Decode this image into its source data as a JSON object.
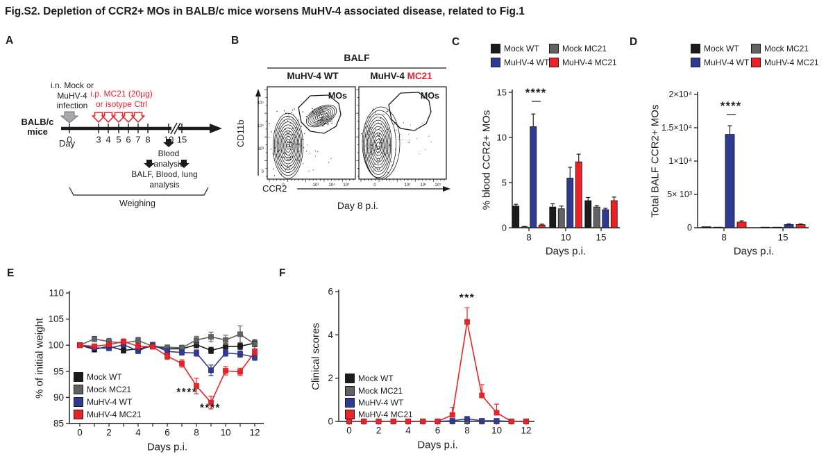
{
  "figure_title": "Fig.S2. Depletion of CCR2+ MOs in BALB/c mice worsens MuHV-4 associated disease, related to Fig.1",
  "panel_labels": {
    "a": "A",
    "b": "B",
    "c": "C",
    "d": "D",
    "e": "E",
    "f": "F"
  },
  "colors": {
    "black": "#1b1b1b",
    "gray": "#606266",
    "blue": "#2f3a93",
    "red": "#ec2227"
  },
  "groups": [
    {
      "name": "Mock WT",
      "color": "#1b1b1b"
    },
    {
      "name": "Mock MC21",
      "color": "#606266"
    },
    {
      "name": "MuHV-4 WT",
      "color": "#2f3a93"
    },
    {
      "name": "MuHV-4 MC21",
      "color": "#ec2227"
    }
  ],
  "panel_a": {
    "mouse_label": "BALB/c\nmice",
    "infection_label": "i.n. Mock or\nMuHV-4\ninfection",
    "treatment_label": "i.p. MC21 (20µg)\nor isotype Ctrl",
    "day_axis_label": "Day",
    "timeline_ticks": [
      "0",
      "3",
      "4",
      "5",
      "6",
      "7",
      "8",
      "10",
      "15"
    ],
    "blood_analysis_label": "Blood\nanalysis",
    "balf_analysis_label": "BALF, Blood, lung\nanalysis",
    "weighing_label": "Weighing"
  },
  "panel_b": {
    "header": "BALF",
    "plot1_title_prefix": "MuHV-4 ",
    "plot1_title_suffix": "WT",
    "plot2_title_prefix": "MuHV-4 ",
    "plot2_title_suffix": "MC21",
    "gate_label": "MOs",
    "y_axis_label": "CD11b",
    "x_axis_label": "CCR2",
    "x_tick_labels": [
      "0",
      "10³",
      "10⁴",
      "10⁵"
    ],
    "y_tick_labels": [
      "10⁵",
      "10⁴",
      "10³",
      "0"
    ],
    "caption": "Day 8 p.i."
  },
  "chart_data": [
    {
      "id": "C",
      "type": "bar",
      "title": "",
      "ylabel": "% blood CCR2+ MOs",
      "xlabel": "Days p.i.",
      "ylim": [
        0,
        15
      ],
      "yticks": [
        0,
        5,
        10,
        15
      ],
      "categories": [
        "8",
        "10",
        "15"
      ],
      "series": [
        {
          "name": "Mock WT",
          "color": "#1b1b1b",
          "values": [
            2.4,
            2.3,
            3.0
          ],
          "errors": [
            0.2,
            0.35,
            0.35
          ]
        },
        {
          "name": "Mock MC21",
          "color": "#606266",
          "values": [
            0.1,
            2.1,
            2.3
          ],
          "errors": [
            0.05,
            0.3,
            0.15
          ]
        },
        {
          "name": "MuHV-4 WT",
          "color": "#2f3a93",
          "values": [
            11.2,
            5.5,
            2.0
          ],
          "errors": [
            1.4,
            1.2,
            0.15
          ]
        },
        {
          "name": "MuHV-4 MC21",
          "color": "#ec2227",
          "values": [
            0.3,
            7.3,
            3.0
          ],
          "errors": [
            0.1,
            0.85,
            0.4
          ]
        }
      ],
      "significance": [
        {
          "text": "****",
          "category_index": 0
        }
      ],
      "legend_position": "top"
    },
    {
      "id": "D",
      "type": "bar",
      "title": "",
      "ylabel": "Total BALF CCR2+ MOs",
      "xlabel": "Days p.i.",
      "ylim": [
        0,
        20000
      ],
      "yticks": [
        0,
        5000,
        10000,
        15000,
        20000
      ],
      "ytick_labels": [
        "0",
        "5× 10³",
        "1×10⁴",
        "1.5×10⁴",
        "2×10⁴"
      ],
      "categories": [
        "8",
        "15"
      ],
      "series": [
        {
          "name": "Mock WT",
          "color": "#1b1b1b",
          "values": [
            150,
            60
          ],
          "errors": [
            0,
            0
          ]
        },
        {
          "name": "Mock MC21",
          "color": "#606266",
          "values": [
            60,
            60
          ],
          "errors": [
            0,
            0
          ]
        },
        {
          "name": "MuHV-4 WT",
          "color": "#2f3a93",
          "values": [
            14000,
            480
          ],
          "errors": [
            1300,
            100
          ]
        },
        {
          "name": "MuHV-4 MC21",
          "color": "#ec2227",
          "values": [
            850,
            480
          ],
          "errors": [
            180,
            90
          ]
        }
      ],
      "significance": [
        {
          "text": "****",
          "category_index": 0
        }
      ],
      "legend_position": "top"
    },
    {
      "id": "E",
      "type": "line",
      "title": "",
      "ylabel": "% of initial weight",
      "xlabel": "Days p.i.",
      "ylim": [
        85,
        110
      ],
      "yticks": [
        85,
        90,
        95,
        100,
        105,
        110
      ],
      "xticks": [
        0,
        2,
        4,
        6,
        8,
        10,
        12
      ],
      "x": [
        0,
        1,
        2,
        3,
        4,
        5,
        6,
        7,
        8,
        9,
        10,
        11,
        12
      ],
      "series": [
        {
          "name": "Mock WT",
          "color": "#1b1b1b",
          "values": [
            100,
            99.2,
            99.8,
            99.0,
            99.3,
            99.8,
            99.3,
            99.3,
            100.1,
            99.0,
            99.7,
            99.8,
            100.4
          ],
          "errors": [
            0.3,
            0.5,
            0.5,
            0.5,
            0.5,
            0.4,
            0.4,
            0.4,
            0.6,
            0.6,
            0.6,
            0.6,
            0.7
          ]
        },
        {
          "name": "Mock MC21",
          "color": "#606266",
          "values": [
            100,
            101.2,
            100.7,
            100.4,
            100.9,
            99.8,
            99.6,
            99.5,
            101.0,
            101.6,
            101.0,
            102.1,
            100.2
          ],
          "errors": [
            0.3,
            0.5,
            0.6,
            0.6,
            0.6,
            0.5,
            0.4,
            0.5,
            0.7,
            0.9,
            0.9,
            1.6,
            0.9
          ]
        },
        {
          "name": "MuHV-4 WT",
          "color": "#2f3a93",
          "values": [
            100,
            99.5,
            99.4,
            100.1,
            98.9,
            100.1,
            98.8,
            98.6,
            98.5,
            95.2,
            98.5,
            98.3,
            97.7
          ],
          "errors": [
            0.3,
            0.4,
            0.4,
            0.5,
            0.5,
            0.4,
            0.5,
            0.5,
            0.6,
            1.0,
            0.6,
            0.6,
            0.6
          ]
        },
        {
          "name": "MuHV-4 MC21",
          "color": "#ec2227",
          "values": [
            100,
            99.8,
            100.1,
            100.7,
            99.8,
            99.7,
            97.9,
            96.5,
            92.2,
            89.0,
            95.1,
            94.9,
            98.7
          ],
          "errors": [
            0.3,
            0.4,
            0.4,
            0.5,
            0.5,
            0.4,
            0.6,
            0.7,
            1.5,
            1.2,
            0.8,
            0.7,
            0.6
          ]
        }
      ],
      "annotations": [
        {
          "text": "****",
          "x": 7.35,
          "y": 90.3
        },
        {
          "text": "****",
          "x": 8.95,
          "y": 87.3
        }
      ],
      "legend_position": "inside-left-bottom"
    },
    {
      "id": "F",
      "type": "line",
      "title": "",
      "ylabel": "Clinical scores",
      "xlabel": "Days p.i.",
      "ylim": [
        0,
        6
      ],
      "yticks": [
        0,
        2,
        4,
        6
      ],
      "xticks": [
        0,
        2,
        4,
        6,
        8,
        10,
        12
      ],
      "x": [
        0,
        1,
        2,
        3,
        4,
        5,
        6,
        7,
        8,
        9,
        10,
        11,
        12
      ],
      "series": [
        {
          "name": "Mock WT",
          "color": "#1b1b1b",
          "values": [
            0,
            0,
            0,
            0,
            0,
            0,
            0,
            0,
            0,
            0,
            0,
            0,
            0
          ],
          "errors": [
            0,
            0,
            0,
            0,
            0,
            0,
            0,
            0,
            0,
            0,
            0,
            0,
            0
          ]
        },
        {
          "name": "Mock MC21",
          "color": "#606266",
          "values": [
            0,
            0,
            0,
            0,
            0,
            0,
            0,
            0,
            0.02,
            0,
            0,
            0,
            0
          ],
          "errors": [
            0,
            0,
            0,
            0,
            0,
            0,
            0,
            0,
            0,
            0,
            0,
            0,
            0
          ]
        },
        {
          "name": "MuHV-4 WT",
          "color": "#2f3a93",
          "values": [
            0,
            0,
            0,
            0,
            0,
            0,
            0,
            0.03,
            0.12,
            0.03,
            0.03,
            0,
            0
          ],
          "errors": [
            0,
            0,
            0,
            0,
            0,
            0,
            0,
            0,
            0,
            0,
            0,
            0,
            0
          ]
        },
        {
          "name": "MuHV-4 MC21",
          "color": "#ec2227",
          "values": [
            0,
            0,
            0,
            0,
            0,
            0,
            0,
            0.3,
            4.6,
            1.2,
            0.4,
            0,
            0
          ],
          "errors": [
            0,
            0,
            0,
            0,
            0,
            0,
            0,
            0.35,
            0.65,
            0.5,
            0.4,
            0,
            0
          ]
        }
      ],
      "annotations": [
        {
          "text": "***",
          "x": 8,
          "y": 5.55
        }
      ],
      "legend_position": "inside-left"
    }
  ]
}
